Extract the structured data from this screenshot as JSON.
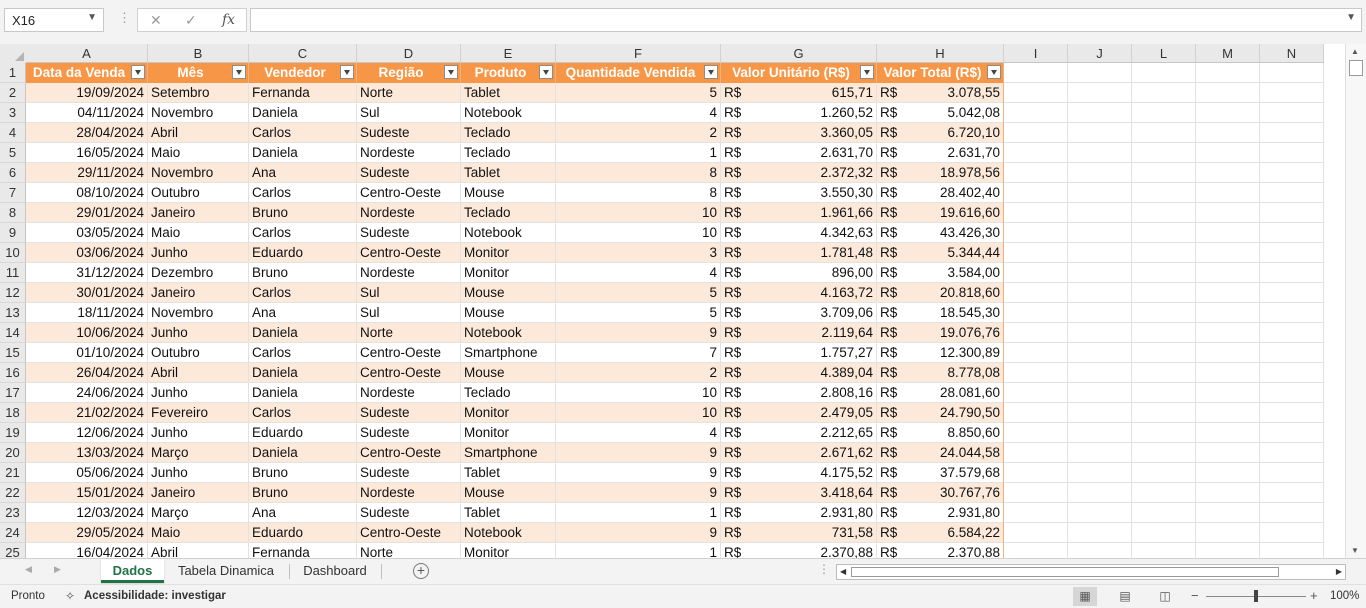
{
  "name_box": "X16",
  "formula_bar": {
    "value": ""
  },
  "columns": [
    "A",
    "B",
    "C",
    "D",
    "E",
    "F",
    "G",
    "H",
    "I",
    "J",
    "L",
    "M",
    "N"
  ],
  "table": {
    "headers": [
      "Data da Venda",
      "Mês",
      "Vendedor",
      "Região",
      "Produto",
      "Quantidade Vendida",
      "Valor Unitário (R$)",
      "Valor Total (R$)"
    ],
    "currency": "R$",
    "rows": [
      [
        "19/09/2024",
        "Setembro",
        "Fernanda",
        "Norte",
        "Tablet",
        "5",
        "615,71",
        "3.078,55"
      ],
      [
        "04/11/2024",
        "Novembro",
        "Daniela",
        "Sul",
        "Notebook",
        "4",
        "1.260,52",
        "5.042,08"
      ],
      [
        "28/04/2024",
        "Abril",
        "Carlos",
        "Sudeste",
        "Teclado",
        "2",
        "3.360,05",
        "6.720,10"
      ],
      [
        "16/05/2024",
        "Maio",
        "Daniela",
        "Nordeste",
        "Teclado",
        "1",
        "2.631,70",
        "2.631,70"
      ],
      [
        "29/11/2024",
        "Novembro",
        "Ana",
        "Sudeste",
        "Tablet",
        "8",
        "2.372,32",
        "18.978,56"
      ],
      [
        "08/10/2024",
        "Outubro",
        "Carlos",
        "Centro-Oeste",
        "Mouse",
        "8",
        "3.550,30",
        "28.402,40"
      ],
      [
        "29/01/2024",
        "Janeiro",
        "Bruno",
        "Nordeste",
        "Teclado",
        "10",
        "1.961,66",
        "19.616,60"
      ],
      [
        "03/05/2024",
        "Maio",
        "Carlos",
        "Sudeste",
        "Notebook",
        "10",
        "4.342,63",
        "43.426,30"
      ],
      [
        "03/06/2024",
        "Junho",
        "Eduardo",
        "Centro-Oeste",
        "Monitor",
        "3",
        "1.781,48",
        "5.344,44"
      ],
      [
        "31/12/2024",
        "Dezembro",
        "Bruno",
        "Nordeste",
        "Monitor",
        "4",
        "896,00",
        "3.584,00"
      ],
      [
        "30/01/2024",
        "Janeiro",
        "Carlos",
        "Sul",
        "Mouse",
        "5",
        "4.163,72",
        "20.818,60"
      ],
      [
        "18/11/2024",
        "Novembro",
        "Ana",
        "Sul",
        "Mouse",
        "5",
        "3.709,06",
        "18.545,30"
      ],
      [
        "10/06/2024",
        "Junho",
        "Daniela",
        "Norte",
        "Notebook",
        "9",
        "2.119,64",
        "19.076,76"
      ],
      [
        "01/10/2024",
        "Outubro",
        "Carlos",
        "Centro-Oeste",
        "Smartphone",
        "7",
        "1.757,27",
        "12.300,89"
      ],
      [
        "26/04/2024",
        "Abril",
        "Daniela",
        "Centro-Oeste",
        "Mouse",
        "2",
        "4.389,04",
        "8.778,08"
      ],
      [
        "24/06/2024",
        "Junho",
        "Daniela",
        "Nordeste",
        "Teclado",
        "10",
        "2.808,16",
        "28.081,60"
      ],
      [
        "21/02/2024",
        "Fevereiro",
        "Carlos",
        "Sudeste",
        "Monitor",
        "10",
        "2.479,05",
        "24.790,50"
      ],
      [
        "12/06/2024",
        "Junho",
        "Eduardo",
        "Sudeste",
        "Monitor",
        "4",
        "2.212,65",
        "8.850,60"
      ],
      [
        "13/03/2024",
        "Março",
        "Daniela",
        "Centro-Oeste",
        "Smartphone",
        "9",
        "2.671,62",
        "24.044,58"
      ],
      [
        "05/06/2024",
        "Junho",
        "Bruno",
        "Sudeste",
        "Tablet",
        "9",
        "4.175,52",
        "37.579,68"
      ],
      [
        "15/01/2024",
        "Janeiro",
        "Bruno",
        "Nordeste",
        "Mouse",
        "9",
        "3.418,64",
        "30.767,76"
      ],
      [
        "12/03/2024",
        "Março",
        "Ana",
        "Sudeste",
        "Tablet",
        "1",
        "2.931,80",
        "2.931,80"
      ],
      [
        "29/05/2024",
        "Maio",
        "Eduardo",
        "Centro-Oeste",
        "Notebook",
        "9",
        "731,58",
        "6.584,22"
      ],
      [
        "16/04/2024",
        "Abril",
        "Fernanda",
        "Norte",
        "Monitor",
        "1",
        "2.370,88",
        "2.370,88"
      ]
    ]
  },
  "sheet_tabs": [
    "Dados",
    "Tabela Dinamica",
    "Dashboard"
  ],
  "active_sheet": "Dados",
  "status": {
    "ready": "Pronto",
    "accessibility": "Acessibilidade: investigar",
    "zoom": "100%",
    "zoom_fraction": 0.5
  },
  "colors": {
    "table_header": "#f79646",
    "band": "#fde9d9",
    "active_tab": "#217346"
  },
  "icons": {
    "cancel": "close-icon",
    "enter": "check-icon",
    "function": "fx-icon",
    "accessibility": "accessibility-icon"
  }
}
